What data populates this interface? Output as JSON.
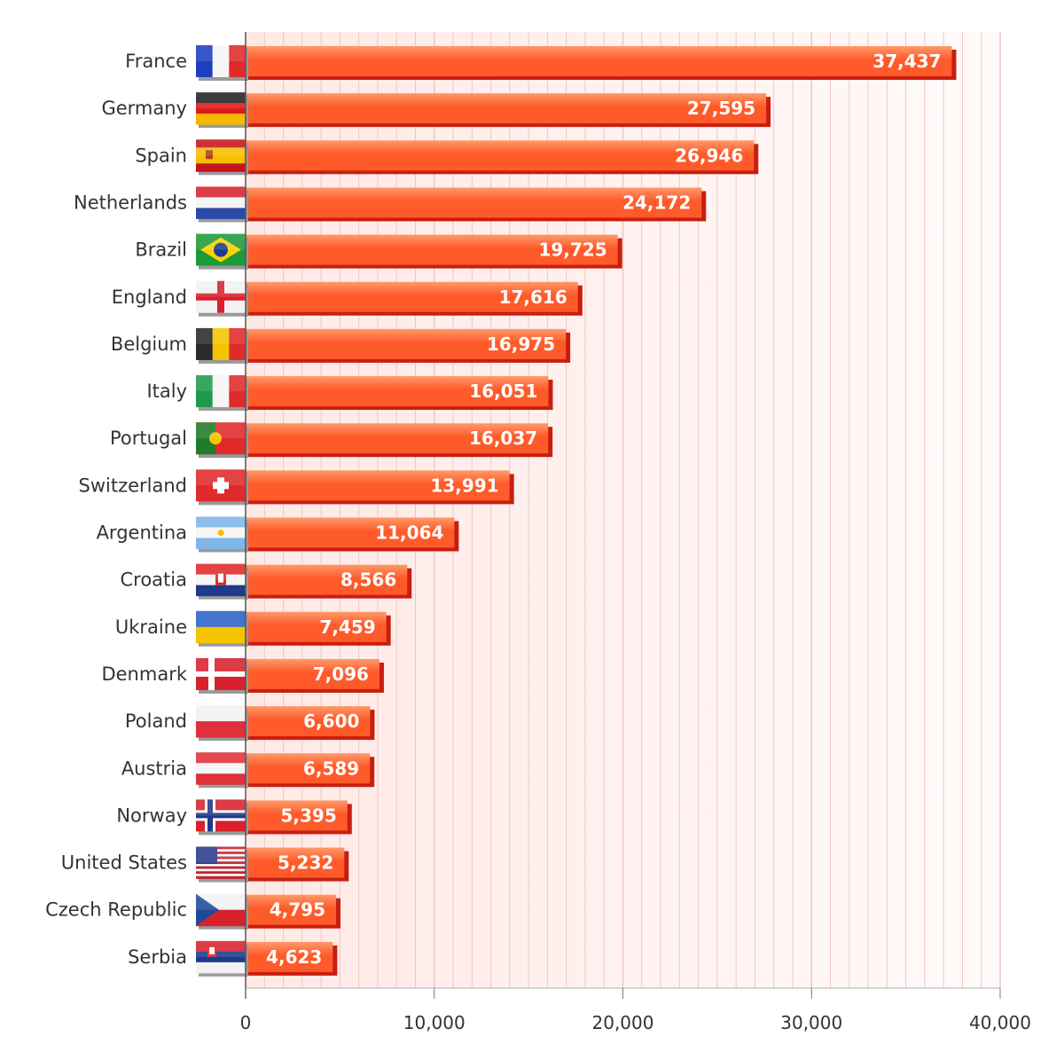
{
  "chart_data": {
    "type": "bar",
    "orientation": "horizontal",
    "title": "",
    "xlabel": "",
    "ylabel": "",
    "xlim": [
      0,
      40000
    ],
    "x_ticks": [
      0,
      10000,
      20000,
      30000,
      40000
    ],
    "x_tick_labels": [
      "0",
      "10,000",
      "20,000",
      "30,000",
      "40,000"
    ],
    "grid": true,
    "legend": "none",
    "categories": [
      "France",
      "Germany",
      "Spain",
      "Netherlands",
      "Brazil",
      "England",
      "Belgium",
      "Italy",
      "Portugal",
      "Switzerland",
      "Argentina",
      "Croatia",
      "Ukraine",
      "Denmark",
      "Poland",
      "Austria",
      "Norway",
      "United States",
      "Czech Republic",
      "Serbia"
    ],
    "values": [
      37437,
      27595,
      26946,
      24172,
      19725,
      17616,
      16975,
      16051,
      16037,
      13991,
      11064,
      8566,
      7459,
      7096,
      6600,
      6589,
      5395,
      5232,
      4795,
      4623
    ],
    "value_labels": [
      "37,437",
      "27,595",
      "26,946",
      "24,172",
      "19,725",
      "17,616",
      "16,975",
      "16,051",
      "16,037",
      "13,991",
      "11,064",
      "8,566",
      "7,459",
      "7,096",
      "6,600",
      "6,589",
      "5,395",
      "5,232",
      "4,795",
      "4,623"
    ],
    "flag_icons": [
      "france-flag-icon",
      "germany-flag-icon",
      "spain-flag-icon",
      "netherlands-flag-icon",
      "brazil-flag-icon",
      "england-flag-icon",
      "belgium-flag-icon",
      "italy-flag-icon",
      "portugal-flag-icon",
      "switzerland-flag-icon",
      "argentina-flag-icon",
      "croatia-flag-icon",
      "ukraine-flag-icon",
      "denmark-flag-icon",
      "poland-flag-icon",
      "austria-flag-icon",
      "norway-flag-icon",
      "united-states-flag-icon",
      "czech-republic-flag-icon",
      "serbia-flag-icon"
    ],
    "colors": {
      "bar": "#ff5a2a",
      "bar_highlight": "#ff9a6a",
      "bar_shadow": "#c81e10",
      "plot_background": "#fff3f1",
      "grid": "#eec8c4"
    }
  }
}
